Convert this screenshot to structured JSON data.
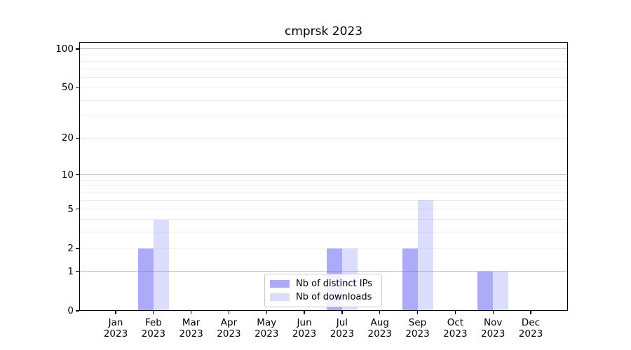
{
  "chart_data": {
    "type": "bar",
    "title": "cmprsk 2023",
    "categories": [
      "Jan 2023",
      "Feb 2023",
      "Mar 2023",
      "Apr 2023",
      "May 2023",
      "Jun 2023",
      "Jul 2023",
      "Aug 2023",
      "Sep 2023",
      "Oct 2023",
      "Nov 2023",
      "Dec 2023"
    ],
    "series": [
      {
        "name": "Nb of distinct IPs",
        "color": "rgba(102,102,240,0.55)",
        "values": [
          0,
          2,
          0,
          0,
          0,
          0,
          2,
          0,
          2,
          0,
          1,
          0
        ]
      },
      {
        "name": "Nb of downloads",
        "color": "rgba(102,102,240,0.23)",
        "values": [
          0,
          4,
          0,
          0,
          0,
          0,
          2,
          0,
          6,
          0,
          1,
          0
        ]
      }
    ],
    "xlabel": "",
    "ylabel": "",
    "y_axis": {
      "scale": "log1p",
      "ylim": [
        0,
        113
      ],
      "major_ticks": [
        0,
        1,
        2,
        5,
        10,
        20,
        50,
        100
      ],
      "minor_gridlines": [
        3,
        4,
        6,
        7,
        8,
        9,
        30,
        40,
        60,
        70,
        80,
        90
      ],
      "emphasized_gridlines": [
        1,
        10,
        100
      ]
    },
    "grid": true,
    "legend_position": "inside-bottom-center",
    "colors": {
      "background": "#ffffff",
      "axis": "#000000",
      "gridline_minor": "#ececec",
      "gridline_major": "#c3c3c3",
      "legend_border": "#cccccc"
    }
  }
}
